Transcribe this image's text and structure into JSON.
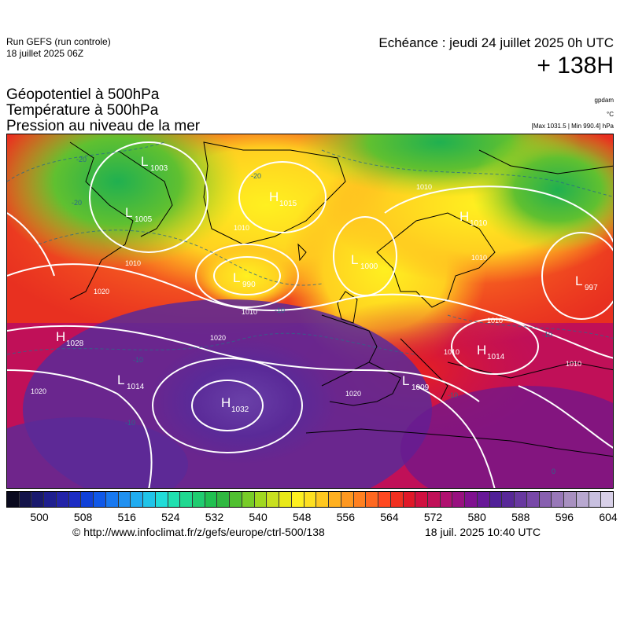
{
  "header": {
    "run_name": "Run GEFS (run controle)",
    "run_date": "18 juillet 2025 06Z",
    "valid_time": "Echéance : jeudi 24 juillet 2025 0h UTC",
    "lead_time": "+ 138H"
  },
  "parameters": {
    "line1": "Géopotentiel à 500hPa",
    "line2": "Température à 500hPa",
    "line3": "Pression au niveau de la mer"
  },
  "units": {
    "geopotential": "gpdam",
    "temperature": "°C",
    "pressure": "[Max 1031.5 | Min 990.4] hPa"
  },
  "pressure_centers": [
    {
      "type": "L",
      "value": "1003"
    },
    {
      "type": "L",
      "value": "1005"
    },
    {
      "type": "H",
      "value": "1015"
    },
    {
      "type": "L",
      "value": "990"
    },
    {
      "type": "L",
      "value": "1000"
    },
    {
      "type": "H",
      "value": "1010"
    },
    {
      "type": "L",
      "value": "997"
    },
    {
      "type": "H",
      "value": "1028"
    },
    {
      "type": "L",
      "value": "1014"
    },
    {
      "type": "H",
      "value": "1032"
    },
    {
      "type": "L",
      "value": "1009"
    },
    {
      "type": "H",
      "value": "1014"
    }
  ],
  "isobar_labels": [
    "1010",
    "1020",
    "1010",
    "1020",
    "1010",
    "1020",
    "1010",
    "1010",
    "1020",
    "1010",
    "1010",
    "1010"
  ],
  "temperature_labels": [
    "-20",
    "-20",
    "-20",
    "-10",
    "-10",
    "-10",
    "-10",
    "0",
    "-10"
  ],
  "colorbar": {
    "colors": [
      "#0a0a1e",
      "#13134a",
      "#1a1a6e",
      "#1f1f8f",
      "#2323a8",
      "#1c2cc4",
      "#1040d8",
      "#1058e8",
      "#1878f0",
      "#2090f0",
      "#20acf0",
      "#20c4e8",
      "#20dcd8",
      "#20e0b0",
      "#20d890",
      "#20cc70",
      "#20c050",
      "#30b840",
      "#50c030",
      "#78cc28",
      "#a0d820",
      "#c8e020",
      "#e8e818",
      "#fff020",
      "#ffe020",
      "#ffc820",
      "#ffb020",
      "#ff9820",
      "#ff8020",
      "#ff6820",
      "#ff4820",
      "#f03020",
      "#e01828",
      "#d01040",
      "#c01058",
      "#b01070",
      "#981080",
      "#801090",
      "#681898",
      "#502098",
      "#582898",
      "#6838a0",
      "#7848a8",
      "#8860b0",
      "#9878b8",
      "#a890c0",
      "#b8a8d0",
      "#c8c0e0",
      "#d8d0e8"
    ],
    "tick_values": [
      "500",
      "508",
      "516",
      "524",
      "532",
      "540",
      "548",
      "556",
      "564",
      "572",
      "580",
      "588",
      "596",
      "604"
    ]
  },
  "footer": {
    "copyright": "© http://www.infoclimat.fr/z/gefs/europe/ctrl-500/138",
    "generated": "18 juil. 2025 10:40 UTC"
  }
}
